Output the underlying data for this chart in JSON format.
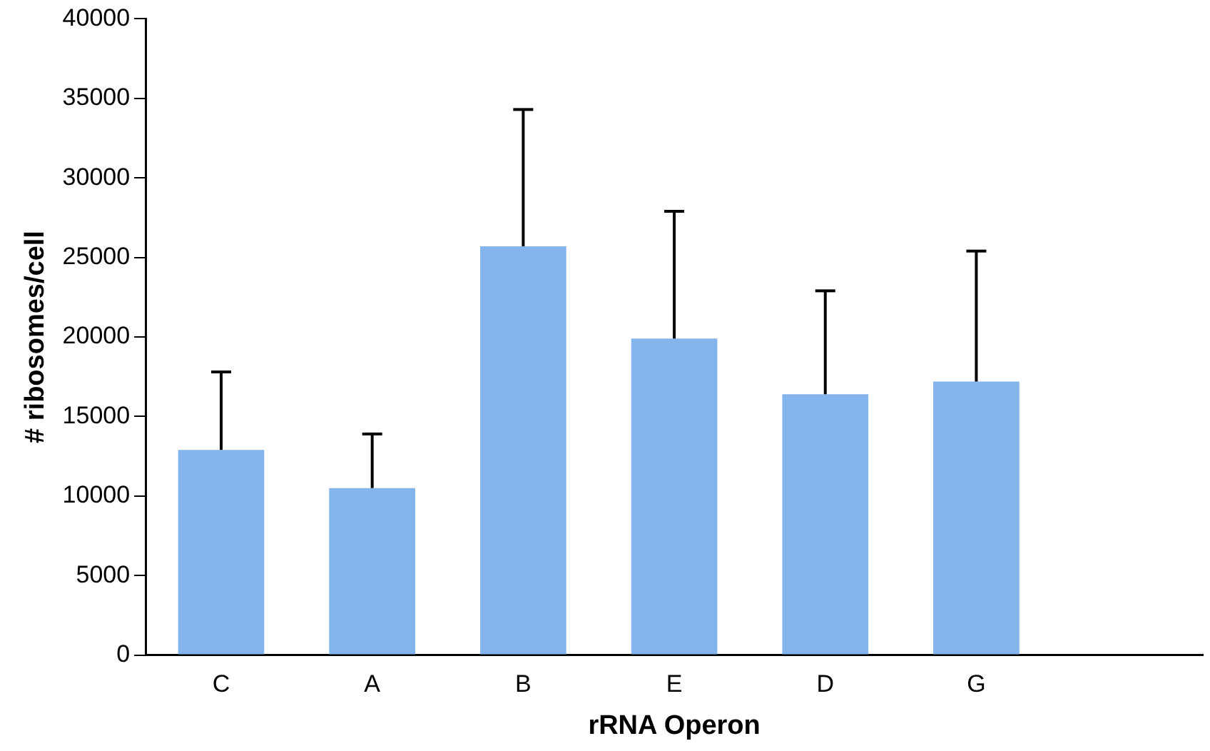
{
  "chart_data": {
    "type": "bar",
    "xlabel": "rRNA Operon",
    "ylabel": "# ribosomes/cell",
    "categories": [
      "C",
      "A",
      "B",
      "E",
      "D",
      "G",
      null
    ],
    "values": [
      12900,
      10500,
      25700,
      19900,
      16400,
      17200,
      null
    ],
    "errors": [
      [
        12900,
        17800
      ],
      [
        10500,
        13900
      ],
      [
        25700,
        34300
      ],
      [
        19900,
        27900
      ],
      [
        16400,
        22900
      ],
      [
        17200,
        25400
      ],
      null
    ],
    "color": "#84b4ec",
    "ylim": [
      0,
      40000
    ],
    "yticks": [
      0,
      5000,
      10000,
      15000,
      20000,
      25000,
      30000,
      35000,
      40000
    ],
    "grid": false,
    "legend": false
  }
}
